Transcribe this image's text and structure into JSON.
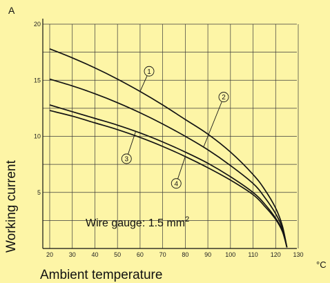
{
  "chart_data": {
    "type": "line",
    "y_unit": "A",
    "x_unit": "°C",
    "ylabel": "Working current",
    "xlabel": "Ambient temperature",
    "annotation_text": "Wire gauge: 1.5 mm",
    "annotation_superscript": "2",
    "xlim": [
      20,
      130
    ],
    "ylim": [
      0,
      20
    ],
    "x_ticks": [
      20,
      30,
      40,
      50,
      60,
      70,
      80,
      90,
      100,
      110,
      120,
      130
    ],
    "y_ticks": [
      5,
      10,
      15,
      20
    ],
    "grid": true,
    "series": [
      {
        "name": "1",
        "x": [
          20,
          30,
          40,
          50,
          60,
          70,
          80,
          90,
          100,
          110,
          115,
          120,
          123,
          125
        ],
        "y": [
          17.8,
          17.0,
          16.1,
          15.1,
          14.0,
          12.8,
          11.5,
          10.2,
          8.6,
          6.6,
          5.3,
          3.6,
          2.0,
          0.1
        ]
      },
      {
        "name": "2",
        "x": [
          20,
          30,
          40,
          50,
          60,
          70,
          80,
          90,
          100,
          110,
          115,
          120,
          123,
          125
        ],
        "y": [
          15.1,
          14.5,
          13.8,
          13.0,
          12.1,
          11.1,
          10.0,
          8.8,
          7.4,
          5.8,
          4.6,
          3.1,
          1.8,
          0.1
        ]
      },
      {
        "name": "3",
        "x": [
          20,
          30,
          40,
          50,
          60,
          70,
          80,
          90,
          100,
          110,
          115,
          120,
          123,
          125
        ],
        "y": [
          12.8,
          12.2,
          11.6,
          11.0,
          10.3,
          9.5,
          8.6,
          7.6,
          6.4,
          5.0,
          4.0,
          2.7,
          1.6,
          0.1
        ]
      },
      {
        "name": "4",
        "x": [
          20,
          30,
          40,
          50,
          60,
          70,
          80,
          90,
          100,
          110,
          115,
          120,
          123,
          125
        ],
        "y": [
          12.3,
          11.8,
          11.2,
          10.6,
          9.9,
          9.1,
          8.2,
          7.2,
          6.1,
          4.8,
          3.8,
          2.6,
          1.5,
          0.1
        ]
      }
    ],
    "markers": [
      {
        "label": "1",
        "series": "1",
        "x": 64,
        "y": 15.8,
        "anchor_x": 60,
        "anchor_y": 14.0
      },
      {
        "label": "2",
        "series": "2",
        "x": 97,
        "y": 13.5,
        "anchor_x": 88,
        "anchor_y": 9.0
      },
      {
        "label": "3",
        "series": "3",
        "x": 54,
        "y": 8.0,
        "anchor_x": 58,
        "anchor_y": 10.4
      },
      {
        "label": "4",
        "series": "4",
        "x": 76,
        "y": 5.8,
        "anchor_x": 80,
        "anchor_y": 8.2
      }
    ]
  }
}
